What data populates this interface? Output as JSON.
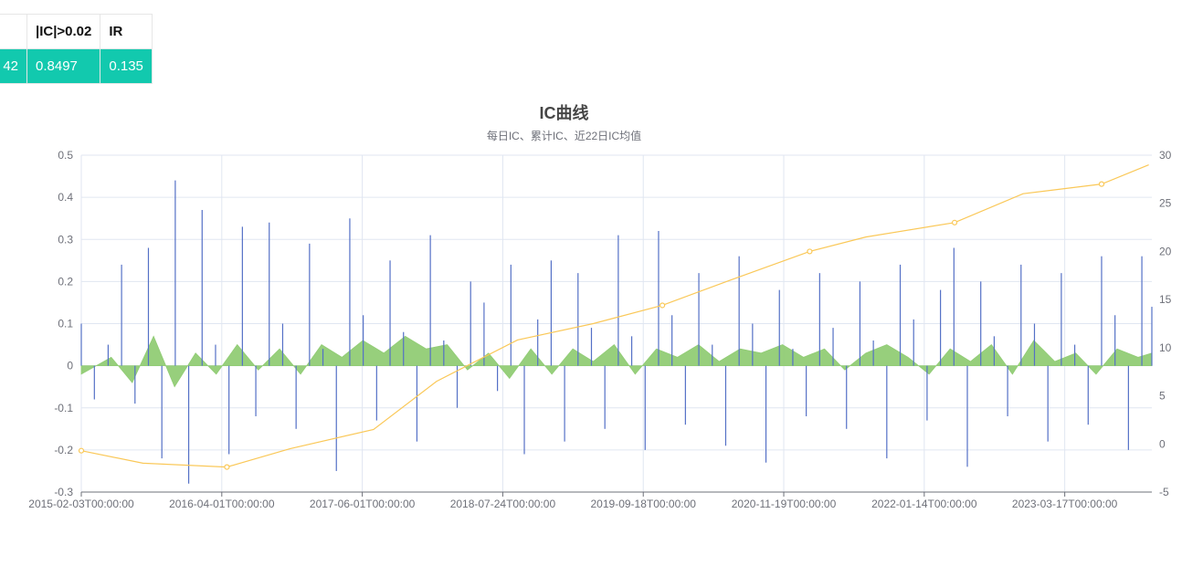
{
  "table": {
    "headers": [
      "",
      "|IC|>0.02",
      "IR"
    ],
    "row": [
      "42",
      "0.8497",
      "0.135"
    ]
  },
  "chart_data": {
    "type": "bar",
    "title": "IC曲线",
    "subtitle": "每日IC、累计IC、近22日IC均值",
    "x_tick_labels": [
      "2015-02-03T00:00:00",
      "2016-04-01T00:00:00",
      "2017-06-01T00:00:00",
      "2018-07-24T00:00:00",
      "2019-09-18T00:00:00",
      "2020-11-19T00:00:00",
      "2022-01-14T00:00:00",
      "2023-03-17T00:00:00"
    ],
    "y_left": {
      "ylim": [
        -0.3,
        0.5
      ],
      "ticks": [
        0.5,
        0.4,
        0.3,
        0.2,
        0.1,
        0,
        -0.1,
        -0.2,
        -0.3
      ]
    },
    "y_right": {
      "ylim": [
        -5,
        30
      ],
      "ticks": [
        30,
        25,
        20,
        15,
        10,
        5,
        0,
        -5
      ]
    },
    "grid": true,
    "colors": {
      "daily": "#5470c6",
      "cumulative": "#fac858",
      "mean22": "#91cc75"
    },
    "series": [
      {
        "type": "line",
        "axis": "right",
        "x": [
          "2015-02-03",
          "2015-08-01",
          "2016-04-01",
          "2016-10-01",
          "2017-06-01",
          "2017-12-01",
          "2018-07-24",
          "2019-03-01",
          "2019-09-18",
          "2020-04-01",
          "2020-11-19",
          "2021-05-01",
          "2022-01-14",
          "2022-08-01",
          "2023-03-17",
          "2023-08-01"
        ],
        "values": [
          -0.7,
          -2.0,
          -2.4,
          -0.5,
          1.5,
          6.5,
          10.8,
          12.5,
          14.4,
          17.0,
          20.0,
          21.5,
          23.0,
          26.0,
          27.0,
          29.0
        ]
      },
      {
        "type": "bar",
        "axis": "left",
        "x": [
          "2015-02-03",
          "2015-03-13",
          "2015-04-22",
          "2015-05-31",
          "2015-07-09",
          "2015-08-17",
          "2015-09-25",
          "2015-11-03",
          "2015-12-12",
          "2016-01-20",
          "2016-02-28",
          "2016-04-07",
          "2016-05-16",
          "2016-06-24",
          "2016-08-02",
          "2016-09-10",
          "2016-10-19",
          "2016-11-27",
          "2017-01-05",
          "2017-02-13",
          "2017-03-24",
          "2017-05-02",
          "2017-06-10",
          "2017-07-19",
          "2017-08-27",
          "2017-10-05",
          "2017-11-13",
          "2017-12-22",
          "2018-01-30",
          "2018-03-10",
          "2018-04-18",
          "2018-05-27",
          "2018-07-05",
          "2018-08-13",
          "2018-09-21",
          "2018-10-30",
          "2018-12-08",
          "2019-01-16",
          "2019-02-24",
          "2019-04-04",
          "2019-05-13",
          "2019-06-21",
          "2019-07-30",
          "2019-09-07",
          "2019-10-16",
          "2019-11-24",
          "2020-01-02",
          "2020-02-10",
          "2020-03-20",
          "2020-04-28",
          "2020-06-06",
          "2020-07-15",
          "2020-08-23",
          "2020-10-01",
          "2020-11-09",
          "2020-12-18",
          "2021-01-26",
          "2021-03-06",
          "2021-04-14",
          "2021-05-23",
          "2021-07-01",
          "2021-08-09",
          "2021-09-17",
          "2021-10-26",
          "2021-12-04",
          "2022-01-12",
          "2022-02-20",
          "2022-03-31",
          "2022-05-09",
          "2022-06-17",
          "2022-07-26",
          "2022-09-03",
          "2022-10-12",
          "2022-11-20",
          "2022-12-29",
          "2023-02-06",
          "2023-03-17",
          "2023-04-25",
          "2023-06-03",
          "2023-07-12",
          "2023-08-10"
        ],
        "values": [
          0.1,
          -0.08,
          0.05,
          0.24,
          -0.09,
          0.28,
          -0.22,
          0.44,
          -0.28,
          0.37,
          0.05,
          -0.21,
          0.33,
          -0.12,
          0.34,
          0.1,
          -0.15,
          0.29,
          0.04,
          -0.25,
          0.35,
          0.12,
          -0.13,
          0.25,
          0.08,
          -0.18,
          0.31,
          0.06,
          -0.1,
          0.2,
          0.15,
          -0.06,
          0.24,
          -0.21,
          0.11,
          0.25,
          -0.18,
          0.22,
          0.09,
          -0.15,
          0.31,
          0.07,
          -0.2,
          0.32,
          0.12,
          -0.14,
          0.22,
          0.05,
          -0.19,
          0.26,
          0.1,
          -0.23,
          0.18,
          0.04,
          -0.12,
          0.22,
          0.09,
          -0.15,
          0.2,
          0.06,
          -0.22,
          0.24,
          0.11,
          -0.13,
          0.18,
          0.28,
          -0.24,
          0.2,
          0.07,
          -0.12,
          0.24,
          0.1,
          -0.18,
          0.22,
          0.05,
          -0.14,
          0.26,
          0.12,
          -0.2,
          0.26,
          0.14
        ]
      },
      {
        "type": "area",
        "axis": "left",
        "x": [
          "2015-02-03",
          "2015-05-01",
          "2015-07-01",
          "2015-09-01",
          "2015-11-01",
          "2016-01-01",
          "2016-03-01",
          "2016-05-01",
          "2016-07-01",
          "2016-09-01",
          "2016-11-01",
          "2017-01-01",
          "2017-03-01",
          "2017-05-01",
          "2017-07-01",
          "2017-09-01",
          "2017-11-01",
          "2018-01-01",
          "2018-03-01",
          "2018-05-01",
          "2018-07-01",
          "2018-09-01",
          "2018-11-01",
          "2019-01-01",
          "2019-03-01",
          "2019-05-01",
          "2019-07-01",
          "2019-09-01",
          "2019-11-01",
          "2020-01-01",
          "2020-03-01",
          "2020-05-01",
          "2020-07-01",
          "2020-09-01",
          "2020-11-01",
          "2021-01-01",
          "2021-03-01",
          "2021-05-01",
          "2021-07-01",
          "2021-09-01",
          "2021-11-01",
          "2022-01-01",
          "2022-03-01",
          "2022-05-01",
          "2022-07-01",
          "2022-09-01",
          "2022-11-01",
          "2023-01-01",
          "2023-03-01",
          "2023-05-01",
          "2023-07-01",
          "2023-08-10"
        ],
        "values": [
          -0.02,
          0.02,
          -0.04,
          0.07,
          -0.05,
          0.03,
          -0.02,
          0.05,
          -0.01,
          0.04,
          -0.02,
          0.05,
          0.02,
          0.06,
          0.03,
          0.07,
          0.04,
          0.05,
          -0.01,
          0.03,
          -0.03,
          0.04,
          -0.02,
          0.04,
          0.01,
          0.05,
          -0.02,
          0.04,
          0.02,
          0.05,
          0.01,
          0.04,
          0.03,
          0.05,
          0.02,
          0.04,
          -0.01,
          0.03,
          0.05,
          0.02,
          -0.02,
          0.04,
          0.01,
          0.05,
          -0.02,
          0.06,
          0.01,
          0.03,
          -0.02,
          0.04,
          0.02,
          0.03
        ]
      }
    ]
  }
}
